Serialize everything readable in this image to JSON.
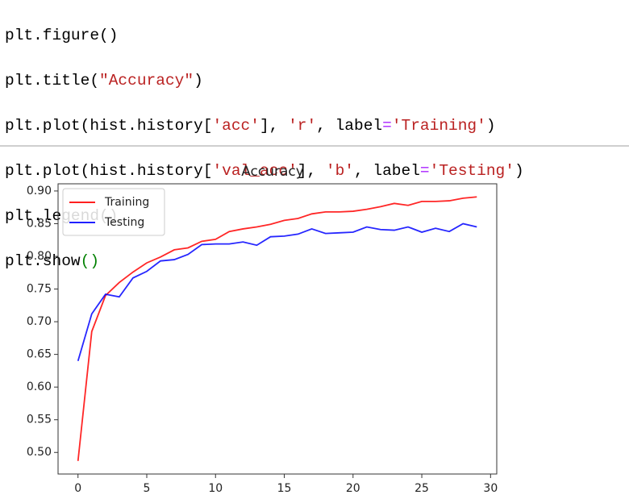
{
  "code": {
    "lines": [
      [
        "plt.figure()"
      ],
      [
        "plt.title(",
        "\"Accuracy\"",
        ")"
      ],
      [
        "plt.plot(hist.history[",
        "'acc'",
        "], ",
        "'r'",
        ", label",
        "=",
        "'Training'",
        ")"
      ],
      [
        "plt.plot(hist.history[",
        "'val_acc'",
        "], ",
        "'b'",
        ", label",
        "=",
        "'Testing'",
        ")"
      ],
      [
        "plt.legend()"
      ],
      [
        "plt.show",
        "()"
      ]
    ]
  },
  "chart_data": {
    "type": "line",
    "title": "Accuracy",
    "x": [
      0,
      1,
      2,
      3,
      4,
      5,
      6,
      7,
      8,
      9,
      10,
      11,
      12,
      13,
      14,
      15,
      16,
      17,
      18,
      19,
      20,
      21,
      22,
      23,
      24,
      25,
      26,
      27,
      28,
      29
    ],
    "series": [
      {
        "name": "Training",
        "color": "#ff0000",
        "values": [
          0.487,
          0.685,
          0.74,
          0.76,
          0.776,
          0.79,
          0.799,
          0.81,
          0.813,
          0.823,
          0.826,
          0.838,
          0.842,
          0.845,
          0.849,
          0.855,
          0.858,
          0.865,
          0.868,
          0.868,
          0.869,
          0.872,
          0.876,
          0.881,
          0.878,
          0.884,
          0.884,
          0.885,
          0.889,
          0.891
        ]
      },
      {
        "name": "Testing",
        "color": "#0000ff",
        "values": [
          0.64,
          0.712,
          0.742,
          0.738,
          0.767,
          0.777,
          0.793,
          0.795,
          0.803,
          0.818,
          0.819,
          0.819,
          0.822,
          0.817,
          0.83,
          0.831,
          0.834,
          0.842,
          0.835,
          0.836,
          0.837,
          0.845,
          0.841,
          0.84,
          0.845,
          0.837,
          0.843,
          0.838,
          0.85,
          0.845
        ]
      }
    ],
    "xlim": [
      -1.45,
      30.45
    ],
    "xticks": [
      0,
      5,
      10,
      15,
      20,
      25,
      30
    ],
    "ylim": [
      0.467,
      0.911
    ],
    "yticks": [
      {
        "value": 0.5,
        "label": "0.50"
      },
      0.55,
      {
        "value": 0.6,
        "label": "0.60"
      },
      0.65,
      {
        "value": 0.7,
        "label": "0.70"
      },
      0.75,
      {
        "value": 0.8,
        "label": "0.80"
      },
      0.85,
      {
        "value": 0.9,
        "label": "0.90"
      }
    ],
    "legend": "upper left"
  }
}
